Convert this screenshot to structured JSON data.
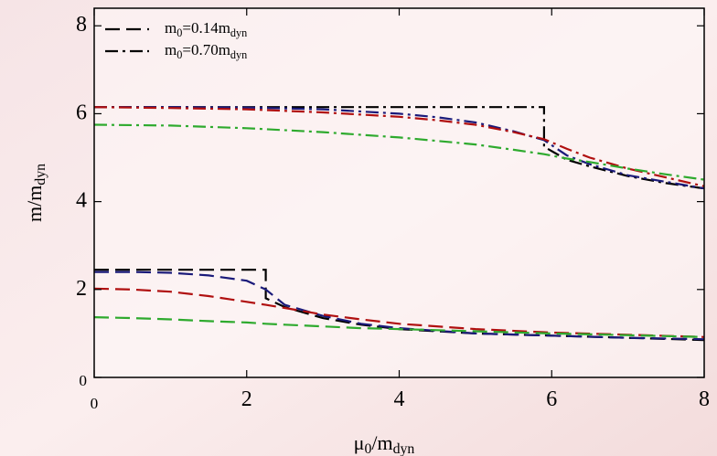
{
  "chart_data": {
    "type": "line",
    "x_label": "μ0/mdyn",
    "y_label": "m/mdyn",
    "xlim": [
      0,
      8
    ],
    "ylim": [
      0,
      8.4
    ],
    "xticks": [
      0,
      2,
      4,
      6,
      8
    ],
    "yticks": [
      0,
      2,
      4,
      6,
      8
    ],
    "legend": "upper-left",
    "series": [
      {
        "name": "m0=0.14mdyn",
        "color": "#000000",
        "style": "dashed",
        "x": [
          0,
          0.5,
          1,
          1.5,
          2,
          2.25,
          2.25,
          2.5,
          3,
          3.5,
          4,
          5,
          6,
          7,
          8
        ],
        "values": [
          2.45,
          2.45,
          2.45,
          2.45,
          2.45,
          2.45,
          1.8,
          1.6,
          1.35,
          1.2,
          1.1,
          1.0,
          0.95,
          0.9,
          0.85
        ]
      },
      {
        "name": "m0=0.70mdyn",
        "color": "#000000",
        "style": "dashdot",
        "x": [
          0,
          1,
          2,
          3,
          4,
          5,
          5.9,
          5.9,
          6.2,
          6.5,
          7,
          7.5,
          8
        ],
        "values": [
          6.15,
          6.15,
          6.15,
          6.15,
          6.15,
          6.15,
          6.15,
          5.25,
          4.95,
          4.8,
          4.58,
          4.42,
          4.3
        ]
      },
      {
        "color": "#1a1a7a",
        "style": "dashed",
        "x": [
          0,
          0.5,
          1,
          1.5,
          2,
          2.25,
          2.5,
          3,
          3.5,
          4,
          5,
          6,
          7,
          8
        ],
        "values": [
          2.4,
          2.4,
          2.38,
          2.32,
          2.2,
          2.0,
          1.65,
          1.4,
          1.22,
          1.12,
          1.0,
          0.95,
          0.9,
          0.87
        ]
      },
      {
        "color": "#b01010",
        "style": "dashed",
        "x": [
          0,
          0.5,
          1,
          1.5,
          2,
          2.25,
          2.5,
          3,
          3.5,
          4,
          5,
          6,
          7,
          8
        ],
        "values": [
          2.02,
          2.0,
          1.95,
          1.85,
          1.72,
          1.65,
          1.58,
          1.43,
          1.32,
          1.22,
          1.1,
          1.02,
          0.97,
          0.92
        ]
      },
      {
        "color": "#2eaa2e",
        "style": "dashed",
        "x": [
          0,
          0.5,
          1,
          1.5,
          2,
          2.25,
          2.5,
          3,
          3.5,
          4,
          5,
          6,
          7,
          8
        ],
        "values": [
          1.37,
          1.35,
          1.32,
          1.28,
          1.25,
          1.22,
          1.2,
          1.16,
          1.12,
          1.1,
          1.05,
          1.0,
          0.96,
          0.92
        ]
      },
      {
        "color": "#1a1a7a",
        "style": "dashdot",
        "x": [
          0,
          1,
          2,
          3,
          4,
          4.5,
          5,
          5.5,
          5.9,
          6.2,
          6.5,
          7,
          7.5,
          8
        ],
        "values": [
          6.15,
          6.15,
          6.14,
          6.1,
          6.0,
          5.92,
          5.8,
          5.6,
          5.4,
          5.05,
          4.85,
          4.6,
          4.45,
          4.3
        ]
      },
      {
        "color": "#b01010",
        "style": "dashdot",
        "x": [
          0,
          1,
          2,
          3,
          4,
          4.5,
          5,
          5.5,
          5.9,
          6.2,
          6.5,
          7,
          7.5,
          8
        ],
        "values": [
          6.15,
          6.13,
          6.1,
          6.03,
          5.93,
          5.85,
          5.75,
          5.58,
          5.42,
          5.2,
          5.0,
          4.75,
          4.55,
          4.35
        ]
      },
      {
        "color": "#2eaa2e",
        "style": "dashdot",
        "x": [
          0,
          1,
          2,
          3,
          4,
          4.5,
          5,
          5.5,
          5.9,
          6.2,
          6.5,
          7,
          7.5,
          8
        ],
        "values": [
          5.75,
          5.73,
          5.67,
          5.58,
          5.46,
          5.38,
          5.3,
          5.18,
          5.08,
          4.98,
          4.9,
          4.75,
          4.62,
          4.5
        ]
      }
    ]
  }
}
